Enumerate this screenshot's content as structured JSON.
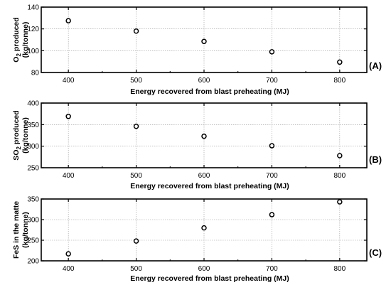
{
  "chart_data": [
    {
      "type": "scatter",
      "panel_label": "(A)",
      "xlabel": "Energy recovered from blast preheating (MJ)",
      "ylabel_main": "O",
      "ylabel_sub": "2",
      "ylabel_rest": " produced",
      "ylabel_line2": "(kg/tonne)",
      "x": [
        400,
        500,
        600,
        700,
        800
      ],
      "y": [
        127.5,
        118,
        108.5,
        99,
        89.5
      ],
      "xlim": [
        360,
        840
      ],
      "ylim": [
        80,
        140
      ],
      "xticks": [
        400,
        500,
        600,
        700,
        800
      ],
      "yticks": [
        80,
        100,
        120,
        140
      ],
      "show_xtick_labels": true,
      "grid": true
    },
    {
      "type": "scatter",
      "panel_label": "(B)",
      "xlabel": "Energy recovered from blast preheating (MJ)",
      "ylabel_main": "SO",
      "ylabel_sub": "2",
      "ylabel_rest": " produced",
      "ylabel_line2": "(kg/tonne)",
      "x": [
        400,
        500,
        600,
        700,
        800
      ],
      "y": [
        369,
        346,
        323,
        301,
        278
      ],
      "xlim": [
        360,
        840
      ],
      "ylim": [
        250,
        400
      ],
      "xticks": [
        400,
        500,
        600,
        700,
        800
      ],
      "yticks": [
        250,
        300,
        350,
        400
      ],
      "show_xtick_labels": true,
      "grid": true
    },
    {
      "type": "scatter",
      "panel_label": "(C)",
      "xlabel": "Energy recovered from blast preheating (MJ)",
      "ylabel_main": "FeS in the matte",
      "ylabel_sub": "",
      "ylabel_rest": "",
      "ylabel_line2": "(kg/tonne)",
      "x": [
        400,
        500,
        600,
        700,
        800
      ],
      "y": [
        217,
        248,
        280,
        312,
        343
      ],
      "xlim": [
        360,
        840
      ],
      "ylim": [
        200,
        350
      ],
      "xticks": [
        400,
        500,
        600,
        700,
        800
      ],
      "yticks": [
        200,
        250,
        300,
        350
      ],
      "show_xtick_labels": true,
      "grid": true
    }
  ]
}
